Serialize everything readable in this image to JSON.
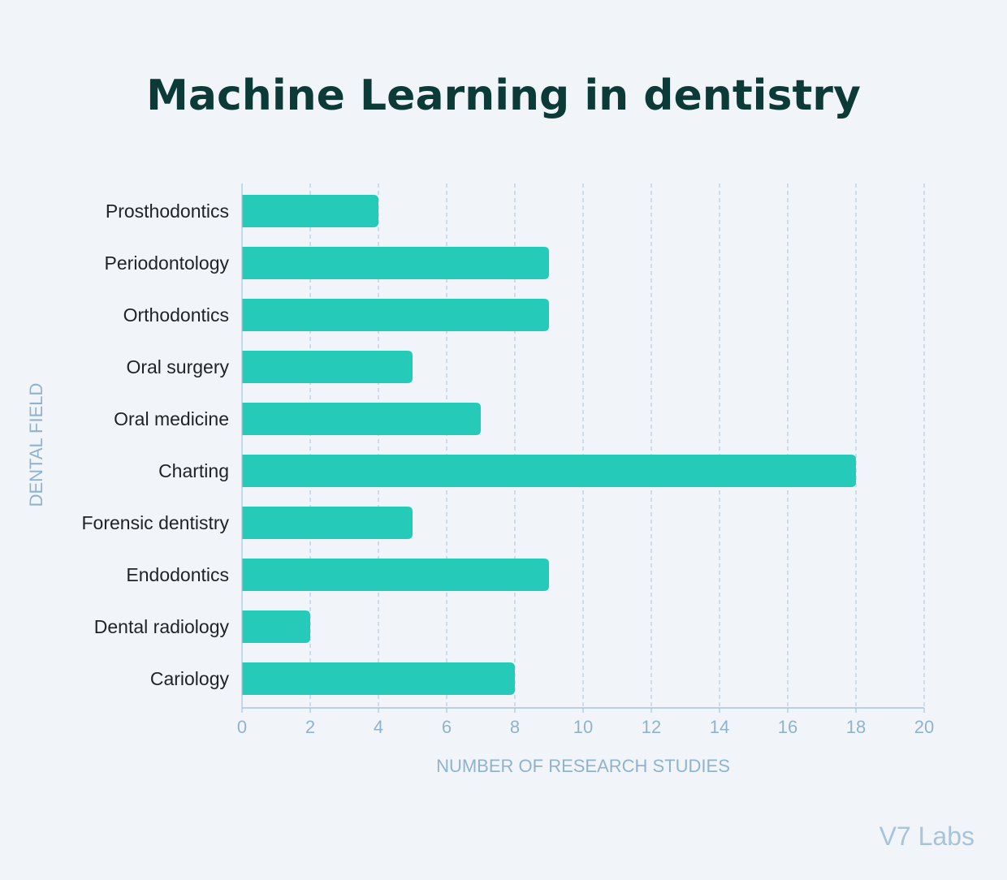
{
  "chart_data": {
    "type": "bar",
    "orientation": "horizontal",
    "title": "Machine Learning in dentistry",
    "xlabel": "NUMBER OF RESEARCH STUDIES",
    "ylabel": "DENTAL FIELD",
    "categories": [
      "Prosthodontics",
      "Periodontology",
      "Orthodontics",
      "Oral surgery",
      "Oral medicine",
      "Charting",
      "Forensic dentistry",
      "Endodontics",
      "Dental radiology",
      "Cariology"
    ],
    "values": [
      4,
      9,
      9,
      5,
      7,
      18,
      5,
      9,
      2,
      8
    ],
    "xlim": [
      0,
      20
    ],
    "xticks": [
      0,
      2,
      4,
      6,
      8,
      10,
      12,
      14,
      16,
      18,
      20
    ],
    "grid": "vertical-dashed",
    "bar_color": "#25cbb8",
    "grid_color": "#a8c3db",
    "text_color": "#1e2324",
    "axis_text_color": "#8fb3ce",
    "title_color": "#0c3b37"
  },
  "watermark": "V7 Labs"
}
